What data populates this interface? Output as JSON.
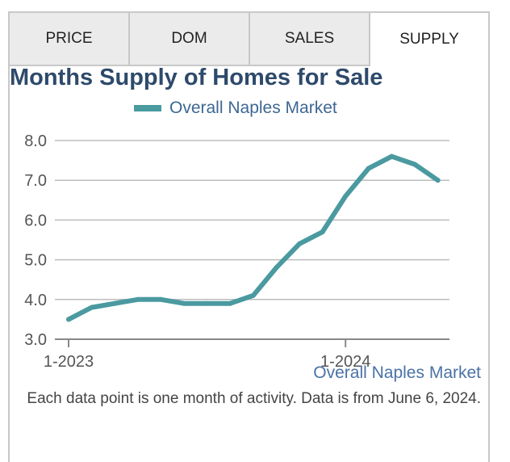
{
  "tabs": [
    {
      "label": "PRICE",
      "active": false
    },
    {
      "label": "DOM",
      "active": false
    },
    {
      "label": "SALES",
      "active": false
    },
    {
      "label": "SUPPLY",
      "active": true
    }
  ],
  "footer_label": "Overall Naples Market",
  "note": "Each data point is one month of activity. Data is from June 6, 2024.",
  "chart_data": {
    "type": "line",
    "title": "Months Supply of Homes for Sale",
    "legend": [
      "Overall Naples Market"
    ],
    "legend_position": "top-center",
    "line_color": "#4a9aa0",
    "ylim": [
      3.0,
      8.0
    ],
    "yticks": [
      "3.0",
      "4.0",
      "5.0",
      "6.0",
      "7.0",
      "8.0"
    ],
    "xticks": [
      "1-2023",
      "1-2024"
    ],
    "grid": true,
    "series": [
      {
        "name": "Overall Naples Market",
        "x": [
          "1-2023",
          "2-2023",
          "3-2023",
          "4-2023",
          "5-2023",
          "6-2023",
          "7-2023",
          "8-2023",
          "9-2023",
          "10-2023",
          "11-2023",
          "12-2023",
          "1-2024",
          "2-2024",
          "3-2024",
          "4-2024",
          "5-2024"
        ],
        "values": [
          3.5,
          3.8,
          3.9,
          4.0,
          4.0,
          3.9,
          3.9,
          3.9,
          4.1,
          4.8,
          5.4,
          5.7,
          6.6,
          7.3,
          7.6,
          7.4,
          7.0
        ]
      }
    ]
  }
}
